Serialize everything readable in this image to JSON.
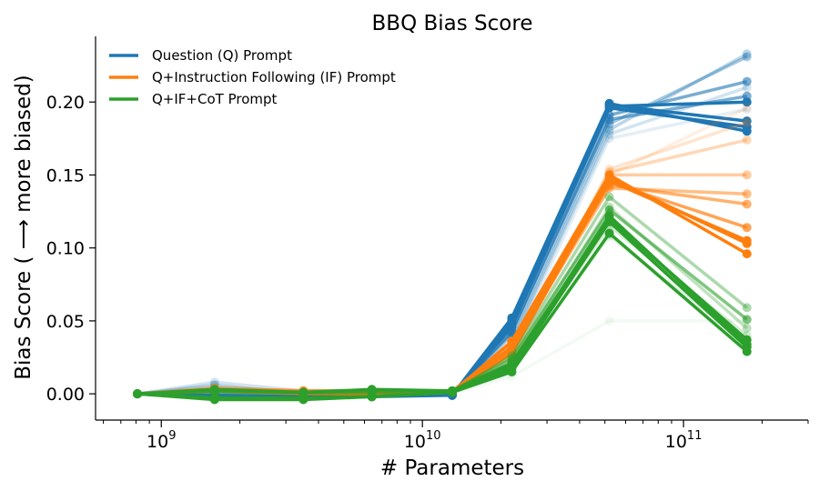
{
  "chart_data": {
    "type": "line",
    "title": "BBQ Bias Score",
    "xlabel": "# Parameters",
    "ylabel": "Bias Score ( ⟶ more biased)",
    "xscale": "log",
    "xlim": [
      560000000,
      300000000000
    ],
    "ylim": [
      -0.018,
      0.245
    ],
    "x_ticks": [
      {
        "value": 1000000000,
        "base": "10",
        "exp": "9"
      },
      {
        "value": 10000000000,
        "base": "10",
        "exp": "10"
      },
      {
        "value": 100000000000,
        "base": "10",
        "exp": "11"
      }
    ],
    "y_ticks": [
      0.0,
      0.05,
      0.1,
      0.15,
      0.2
    ],
    "y_tick_labels": [
      "0.00",
      "0.05",
      "0.10",
      "0.15",
      "0.20"
    ],
    "grid": false,
    "legend_position": "top-left",
    "x": [
      810000000,
      1600000000,
      3500000000,
      6400000000,
      13000000000,
      22000000000,
      52000000000,
      175000000000
    ],
    "series": [
      {
        "name": "Question (Q) Prompt",
        "color": "#1f77b4",
        "runs": [
          {
            "alpha": 1.0,
            "values": [
              0.0,
              -0.002,
              -0.003,
              -0.001,
              -0.001,
              0.052,
              0.199,
              0.18
            ]
          },
          {
            "alpha": 1.0,
            "values": [
              0.0,
              -0.001,
              -0.002,
              -0.001,
              -0.001,
              0.048,
              0.198,
              0.187
            ]
          },
          {
            "alpha": 1.0,
            "values": [
              0.0,
              -0.002,
              -0.002,
              -0.002,
              -0.001,
              0.05,
              0.197,
              0.2
            ]
          },
          {
            "alpha": 1.0,
            "values": [
              0.0,
              -0.002,
              -0.002,
              -0.001,
              -0.001,
              0.046,
              0.196,
              0.183
            ]
          },
          {
            "alpha": 0.6,
            "values": [
              0.0,
              0.001,
              -0.001,
              0.001,
              0.0,
              0.042,
              0.191,
              0.214
            ]
          },
          {
            "alpha": 0.6,
            "values": [
              0.0,
              0.002,
              0.0,
              0.0,
              0.0,
              0.043,
              0.188,
              0.204
            ]
          },
          {
            "alpha": 0.4,
            "values": [
              0.0,
              0.003,
              0.001,
              0.001,
              0.0,
              0.04,
              0.185,
              0.231
            ]
          },
          {
            "alpha": 0.3,
            "values": [
              0.0,
              0.006,
              0.0,
              0.0,
              0.0,
              0.036,
              0.181,
              0.233
            ]
          },
          {
            "alpha": 0.2,
            "values": [
              0.0,
              0.008,
              0.002,
              0.001,
              0.0,
              0.035,
              0.178,
              0.21
            ]
          },
          {
            "alpha": 0.12,
            "values": [
              0.0,
              0.005,
              0.001,
              0.0,
              0.0,
              0.03,
              0.175,
              0.195
            ]
          }
        ]
      },
      {
        "name": "Q+Instruction Following (IF) Prompt",
        "color": "#ff7f0e",
        "runs": [
          {
            "alpha": 1.0,
            "values": [
              0.0,
              0.002,
              0.001,
              0.001,
              0.001,
              0.036,
              0.15,
              0.096
            ]
          },
          {
            "alpha": 1.0,
            "values": [
              0.0,
              0.002,
              0.0,
              0.0,
              0.001,
              0.032,
              0.148,
              0.103
            ]
          },
          {
            "alpha": 1.0,
            "values": [
              0.0,
              0.002,
              0.0,
              0.001,
              0.001,
              0.028,
              0.146,
              0.105
            ]
          },
          {
            "alpha": 0.7,
            "values": [
              0.0,
              0.003,
              0.001,
              0.001,
              0.001,
              0.03,
              0.145,
              0.114
            ]
          },
          {
            "alpha": 0.6,
            "values": [
              0.0,
              0.003,
              0.002,
              0.002,
              0.002,
              0.033,
              0.143,
              0.13
            ]
          },
          {
            "alpha": 0.5,
            "values": [
              0.0,
              0.004,
              0.002,
              0.002,
              0.001,
              0.031,
              0.141,
              0.137
            ]
          },
          {
            "alpha": 0.4,
            "values": [
              0.0,
              0.003,
              0.001,
              0.001,
              0.001,
              0.029,
              0.15,
              0.15
            ]
          },
          {
            "alpha": 0.3,
            "values": [
              0.0,
              0.004,
              0.002,
              0.002,
              0.002,
              0.027,
              0.152,
              0.174
            ]
          },
          {
            "alpha": 0.2,
            "values": [
              0.0,
              0.003,
              0.001,
              0.001,
              0.001,
              0.025,
              0.154,
              0.186
            ]
          },
          {
            "alpha": 0.12,
            "values": [
              0.0,
              0.004,
              0.002,
              0.002,
              0.001,
              0.022,
              0.15,
              0.196
            ]
          }
        ]
      },
      {
        "name": "Q+IF+CoT Prompt",
        "color": "#2ca02c",
        "runs": [
          {
            "alpha": 1.0,
            "values": [
              0.0,
              -0.004,
              -0.004,
              -0.002,
              0.001,
              0.015,
              0.11,
              0.029
            ]
          },
          {
            "alpha": 1.0,
            "values": [
              0.0,
              -0.003,
              -0.003,
              -0.002,
              0.001,
              0.017,
              0.118,
              0.032
            ]
          },
          {
            "alpha": 1.0,
            "values": [
              0.0,
              -0.003,
              -0.003,
              -0.002,
              0.001,
              0.019,
              0.122,
              0.034
            ]
          },
          {
            "alpha": 1.0,
            "values": [
              0.0,
              0.003,
              0.001,
              0.003,
              0.002,
              0.021,
              0.12,
              0.037
            ]
          },
          {
            "alpha": 0.6,
            "values": [
              0.0,
              0.002,
              0.001,
              0.002,
              0.002,
              0.024,
              0.126,
              0.051
            ]
          },
          {
            "alpha": 0.4,
            "values": [
              0.0,
              0.002,
              0.001,
              0.001,
              0.001,
              0.026,
              0.135,
              0.059
            ]
          },
          {
            "alpha": 0.3,
            "values": [
              0.0,
              0.001,
              0.0,
              0.001,
              0.001,
              0.022,
              0.128,
              0.045
            ]
          },
          {
            "alpha": 0.2,
            "values": [
              0.0,
              0.0,
              0.0,
              0.0,
              0.001,
              0.02,
              0.115,
              0.04
            ]
          },
          {
            "alpha": 0.12,
            "values": [
              0.0,
              0.002,
              0.001,
              0.001,
              0.001,
              0.016,
              0.108,
              0.035
            ]
          },
          {
            "alpha": 0.06,
            "values": [
              0.0,
              0.001,
              0.0,
              0.0,
              0.0,
              0.012,
              0.05,
              0.05
            ]
          }
        ]
      }
    ]
  }
}
